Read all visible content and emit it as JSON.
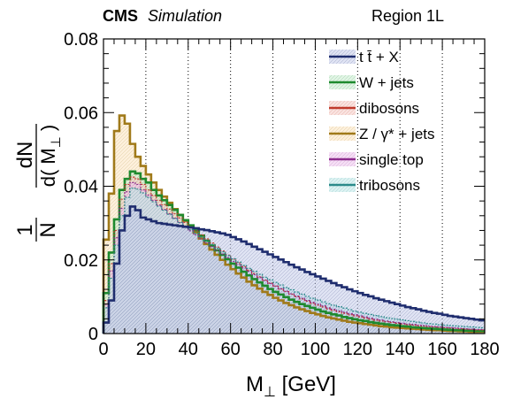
{
  "header": {
    "experiment": "CMS",
    "status": "Simulation",
    "region": "Region 1L"
  },
  "axes": {
    "xlabel_main": "M",
    "xlabel_sub": "⊥",
    "xlabel_unit": " [GeV]",
    "ylabel_prefix": "1",
    "ylabel_n": "N",
    "ylabel_num": "dN",
    "ylabel_den_open": "d( M",
    "ylabel_den_sub": "⊥",
    "ylabel_den_close": " )"
  },
  "chart_data": {
    "type": "area",
    "stacked": false,
    "histogram": true,
    "xlim": [
      0,
      180
    ],
    "ylim": [
      0,
      0.08
    ],
    "bin_width": 2.5,
    "x_ticks": [
      "0",
      "20",
      "40",
      "60",
      "80",
      "100",
      "120",
      "140",
      "160",
      "180"
    ],
    "y_ticks": [
      "0",
      "0.02",
      "0.04",
      "0.06",
      "0.08"
    ],
    "x_tick_values": [
      0,
      20,
      40,
      60,
      80,
      100,
      120,
      140,
      160,
      180
    ],
    "y_tick_values": [
      0,
      0.02,
      0.04,
      0.06,
      0.08
    ],
    "vertical_dotted_grid_at": [
      20,
      40,
      60,
      80,
      100,
      120,
      140,
      160
    ],
    "legend_position": "top-right",
    "series": [
      {
        "name": "t t̄ + X",
        "color": "#1f2d6e",
        "fill": "#c5cbe8",
        "values": [
          0.003,
          0.009,
          0.019,
          0.028,
          0.032,
          0.0345,
          0.0335,
          0.0315,
          0.031,
          0.0305,
          0.03,
          0.0298,
          0.0296,
          0.0294,
          0.0292,
          0.029,
          0.0288,
          0.0286,
          0.0283,
          0.0281,
          0.0278,
          0.0275,
          0.0272,
          0.0268,
          0.0262,
          0.0256,
          0.025,
          0.0243,
          0.0236,
          0.0229,
          0.0222,
          0.0215,
          0.0208,
          0.0201,
          0.0194,
          0.0187,
          0.018,
          0.0174,
          0.0167,
          0.0161,
          0.0155,
          0.0149,
          0.0143,
          0.0137,
          0.0131,
          0.0126,
          0.012,
          0.0115,
          0.011,
          0.0105,
          0.0101,
          0.0096,
          0.0092,
          0.0088,
          0.0084,
          0.008,
          0.0076,
          0.0072,
          0.0069,
          0.0066,
          0.0062,
          0.0059,
          0.0056,
          0.0054,
          0.0051,
          0.0048,
          0.0046,
          0.0044,
          0.0042,
          0.004,
          0.0038,
          0.0036
        ]
      },
      {
        "name": "W + jets",
        "color": "#1e8a2e",
        "fill": "#c8ebd0",
        "values": [
          0.011,
          0.022,
          0.031,
          0.039,
          0.042,
          0.044,
          0.0435,
          0.042,
          0.041,
          0.039,
          0.0375,
          0.0362,
          0.0349,
          0.0336,
          0.0322,
          0.0308,
          0.0294,
          0.028,
          0.0266,
          0.0252,
          0.0239,
          0.0226,
          0.0214,
          0.0202,
          0.019,
          0.0179,
          0.0168,
          0.0158,
          0.0148,
          0.0139,
          0.013,
          0.0121,
          0.0113,
          0.0106,
          0.0099,
          0.0092,
          0.0086,
          0.008,
          0.0075,
          0.007,
          0.0065,
          0.006,
          0.0056,
          0.0052,
          0.0049,
          0.0045,
          0.0042,
          0.0039,
          0.0036,
          0.0034,
          0.0031,
          0.0029,
          0.0027,
          0.0025,
          0.0023,
          0.0022,
          0.002,
          0.0019,
          0.0017,
          0.0016,
          0.0015,
          0.0014,
          0.0013,
          0.0012,
          0.0011,
          0.001,
          0.0009,
          0.0009,
          0.0008,
          0.0008,
          0.0007,
          0.0007
        ]
      },
      {
        "name": "dibosons",
        "color": "#c0392b",
        "fill": "#f3c9c4",
        "values": [
          0.009,
          0.019,
          0.028,
          0.0365,
          0.0405,
          0.0425,
          0.042,
          0.0405,
          0.039,
          0.0375,
          0.0362,
          0.035,
          0.0338,
          0.0326,
          0.0314,
          0.0302,
          0.029,
          0.0279,
          0.0268,
          0.0257,
          0.0246,
          0.0235,
          0.0224,
          0.0213,
          0.0202,
          0.0192,
          0.0182,
          0.0172,
          0.0163,
          0.0154,
          0.0145,
          0.0137,
          0.0129,
          0.0121,
          0.0114,
          0.0107,
          0.01,
          0.0094,
          0.0088,
          0.0082,
          0.0077,
          0.0072,
          0.0067,
          0.0063,
          0.0059,
          0.0055,
          0.0051,
          0.0048,
          0.0045,
          0.0042,
          0.0039,
          0.0036,
          0.0034,
          0.0032,
          0.003,
          0.0028,
          0.0026,
          0.0024,
          0.0023,
          0.0021,
          0.002,
          0.0019,
          0.0018,
          0.0017,
          0.0016,
          0.0015,
          0.0014,
          0.0013,
          0.0012,
          0.0011,
          0.001,
          0.001
        ]
      },
      {
        "name": "Z / γ* + jets",
        "color": "#a07a1a",
        "fill": "#fbe3bf",
        "values": [
          0.0255,
          0.038,
          0.055,
          0.0592,
          0.057,
          0.0515,
          0.048,
          0.0455,
          0.0432,
          0.041,
          0.039,
          0.0372,
          0.0355,
          0.0338,
          0.0322,
          0.0306,
          0.029,
          0.0274,
          0.0258,
          0.0243,
          0.0228,
          0.0214,
          0.02,
          0.0187,
          0.0175,
          0.0163,
          0.0152,
          0.0141,
          0.0131,
          0.0122,
          0.0113,
          0.0105,
          0.0097,
          0.009,
          0.0083,
          0.0077,
          0.0071,
          0.0066,
          0.0061,
          0.0056,
          0.0052,
          0.0048,
          0.0044,
          0.0041,
          0.0038,
          0.0035,
          0.0032,
          0.003,
          0.0028,
          0.0026,
          0.0024,
          0.0022,
          0.002,
          0.0019,
          0.0017,
          0.0016,
          0.0015,
          0.0014,
          0.0013,
          0.0012,
          0.0011,
          0.001,
          0.0009,
          0.0009,
          0.0008,
          0.0007,
          0.0007,
          0.0006,
          0.0006,
          0.0005,
          0.0005,
          0.0005
        ]
      },
      {
        "name": "single top",
        "color": "#8e2d8e",
        "fill": "#ecc4ec",
        "values": [
          0.008,
          0.017,
          0.026,
          0.034,
          0.0385,
          0.041,
          0.0405,
          0.039,
          0.0376,
          0.0362,
          0.0349,
          0.0337,
          0.0325,
          0.0313,
          0.0301,
          0.029,
          0.0279,
          0.0268,
          0.0257,
          0.0246,
          0.0236,
          0.0226,
          0.0216,
          0.0206,
          0.0196,
          0.0187,
          0.0178,
          0.0169,
          0.016,
          0.0152,
          0.0144,
          0.0136,
          0.0129,
          0.0122,
          0.0115,
          0.0108,
          0.0102,
          0.0096,
          0.009,
          0.0085,
          0.008,
          0.0075,
          0.007,
          0.0066,
          0.0062,
          0.0058,
          0.0054,
          0.0051,
          0.0048,
          0.0045,
          0.0042,
          0.0039,
          0.0037,
          0.0034,
          0.0032,
          0.003,
          0.0028,
          0.0026,
          0.0025,
          0.0023,
          0.0022,
          0.002,
          0.0019,
          0.0018,
          0.0017,
          0.0016,
          0.0015,
          0.0014,
          0.0013,
          0.0012,
          0.0011,
          0.0011
        ]
      },
      {
        "name": "tribosons",
        "color": "#2a8a8a",
        "fill": "#bfe6e6",
        "values": [
          0.007,
          0.015,
          0.024,
          0.032,
          0.037,
          0.0395,
          0.0392,
          0.0382,
          0.037,
          0.0358,
          0.0346,
          0.0335,
          0.0324,
          0.0313,
          0.0302,
          0.0292,
          0.0282,
          0.0272,
          0.0262,
          0.0252,
          0.0242,
          0.0232,
          0.0222,
          0.0212,
          0.0203,
          0.0194,
          0.0185,
          0.0177,
          0.0169,
          0.0161,
          0.0153,
          0.0146,
          0.0139,
          0.0132,
          0.0125,
          0.0119,
          0.0113,
          0.0107,
          0.0101,
          0.0096,
          0.0091,
          0.0086,
          0.0081,
          0.0077,
          0.0073,
          0.0069,
          0.0065,
          0.0061,
          0.0058,
          0.0055,
          0.0052,
          0.0049,
          0.0046,
          0.0043,
          0.0041,
          0.0039,
          0.0037,
          0.0035,
          0.0033,
          0.0031,
          0.0029,
          0.0027,
          0.0026,
          0.0024,
          0.0023,
          0.0022,
          0.0021,
          0.002,
          0.0019,
          0.0018,
          0.0017,
          0.0016
        ]
      }
    ]
  }
}
